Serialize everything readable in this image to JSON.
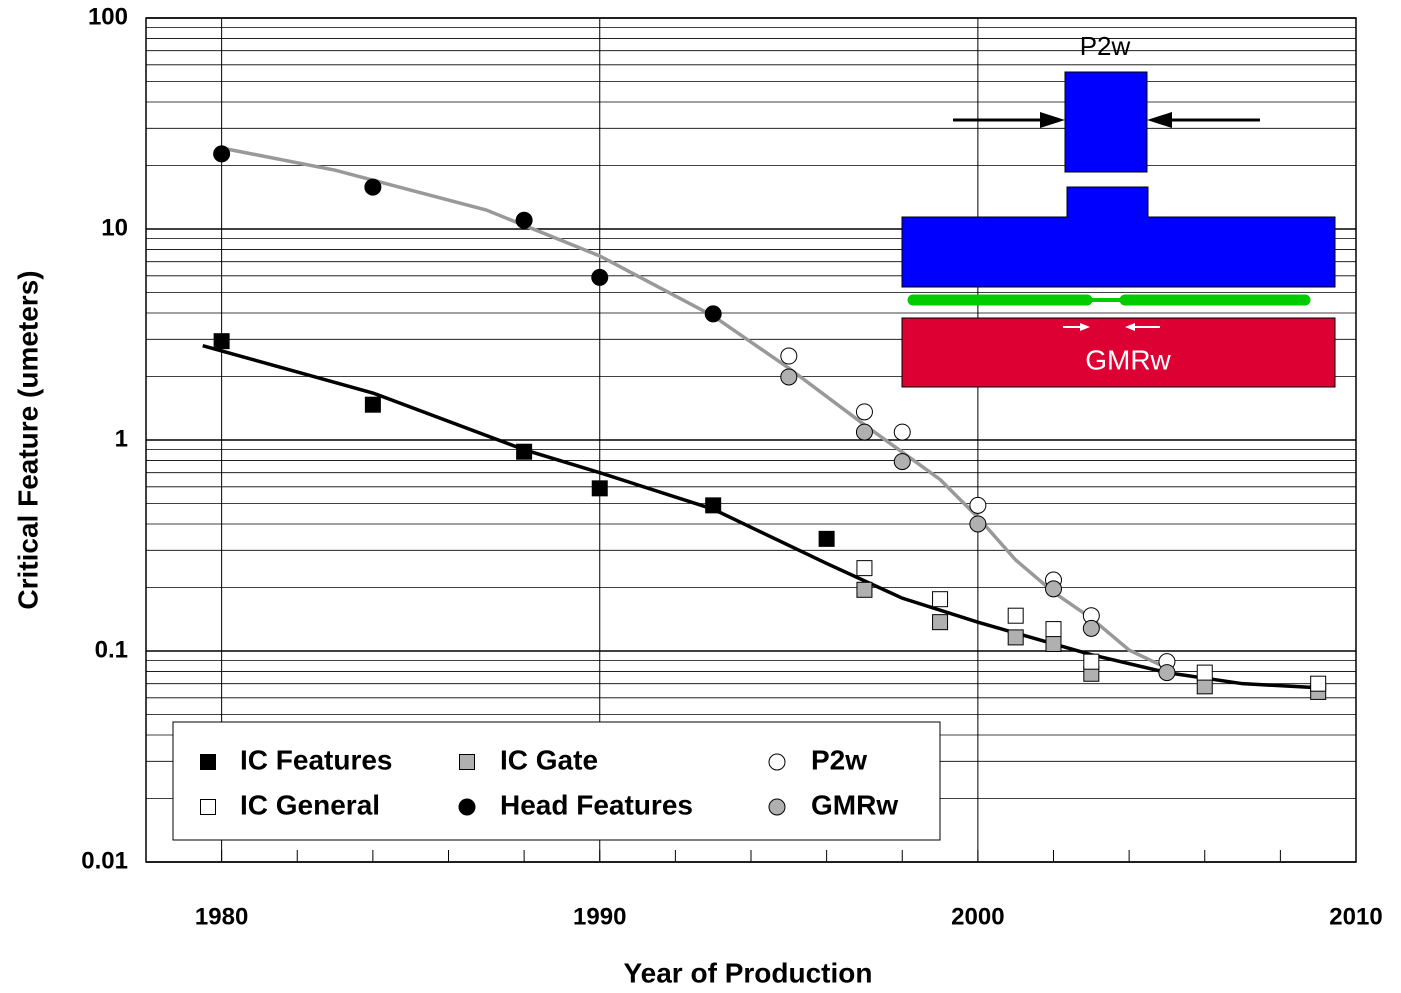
{
  "chart_data": {
    "type": "scatter",
    "x_label": "Year of Production",
    "y_label": "Critical Feature (umeters)",
    "log_y": true,
    "grid": true,
    "minor_grid": true,
    "xlim": [
      1978,
      2010
    ],
    "xticks": [
      1980,
      1990,
      2000,
      2010
    ],
    "xminor_step": 2,
    "ylim": [
      0.01,
      100
    ],
    "yticks": [
      0.01,
      0.1,
      1,
      10,
      100
    ],
    "series": [
      {
        "name": "IC Features",
        "marker": "square",
        "color": "#000000",
        "x": [
          1980,
          1984,
          1988,
          1990,
          1993,
          1996
        ],
        "values": [
          2.94,
          1.47,
          0.88,
          0.59,
          0.49,
          0.34
        ]
      },
      {
        "name": "IC Gate",
        "marker": "square",
        "color": "#b0b0b0",
        "x": [
          1997,
          1999,
          2001,
          2002,
          2003,
          2006,
          2009
        ],
        "values": [
          0.195,
          0.137,
          0.116,
          0.108,
          0.078,
          0.068,
          0.064
        ]
      },
      {
        "name": "P2w",
        "marker": "circle",
        "color": "#ffffff",
        "x": [
          1995,
          1997,
          1998,
          2000,
          2002,
          2003,
          2005
        ],
        "values": [
          2.5,
          1.36,
          1.09,
          0.49,
          0.217,
          0.147,
          0.089
        ]
      },
      {
        "name": "IC General",
        "marker": "square",
        "color": "#ffffff",
        "x": [
          1997,
          1999,
          2001,
          2002,
          2003,
          2006,
          2009
        ],
        "values": [
          0.247,
          0.176,
          0.147,
          0.127,
          0.089,
          0.079,
          0.07
        ]
      },
      {
        "name": "Head Features",
        "marker": "circle",
        "color": "#000000",
        "x": [
          1980,
          1984,
          1988,
          1990,
          1993
        ],
        "values": [
          22.7,
          15.8,
          11.0,
          5.9,
          3.96
        ]
      },
      {
        "name": "GMRw",
        "marker": "circle",
        "color": "#b0b0b0",
        "x": [
          1995,
          1997,
          1998,
          2000,
          2002,
          2003,
          2005
        ],
        "values": [
          1.99,
          1.09,
          0.79,
          0.4,
          0.197,
          0.128,
          0.079
        ]
      }
    ],
    "trends": [
      {
        "color": "#000000",
        "x": [
          1979.5,
          1984,
          1988,
          1990,
          1993,
          1996,
          1998,
          2000,
          2003,
          2005,
          2007,
          2009
        ],
        "values": [
          2.8,
          1.67,
          0.9,
          0.7,
          0.47,
          0.26,
          0.178,
          0.137,
          0.096,
          0.079,
          0.07,
          0.067
        ]
      },
      {
        "color": "#999999",
        "x": [
          1980,
          1983,
          1987,
          1990,
          1993,
          1995,
          1997,
          1999,
          2000,
          2001,
          2002,
          2003,
          2004,
          2005
        ],
        "values": [
          24.2,
          19.0,
          12.3,
          7.45,
          3.87,
          2.19,
          1.18,
          0.65,
          0.43,
          0.27,
          0.19,
          0.143,
          0.101,
          0.083
        ]
      }
    ],
    "annotations": [
      "P2w",
      "GMRw"
    ]
  }
}
